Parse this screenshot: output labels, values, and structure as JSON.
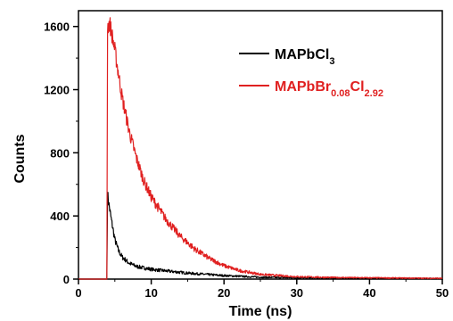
{
  "chart_data": {
    "type": "line",
    "xlabel": "Time (ns)",
    "ylabel": "Counts",
    "xlim": [
      0,
      50
    ],
    "ylim": [
      0,
      1700
    ],
    "x_ticks": [
      0,
      10,
      20,
      30,
      40,
      50
    ],
    "y_ticks": [
      0,
      400,
      800,
      1200,
      1600
    ],
    "grid": false,
    "legend_position": "top-right",
    "series": [
      {
        "name_main": "MAPbCl",
        "name_sub": "3",
        "color": "#000000",
        "x": [
          0,
          3.9,
          4.0,
          4.2,
          4.5,
          5.0,
          5.5,
          6.0,
          7.0,
          8.0,
          10.0,
          12.0,
          15.0,
          20.0,
          25.0,
          30.0,
          40.0,
          50.0
        ],
        "y": [
          0,
          0,
          540,
          470,
          380,
          250,
          180,
          140,
          100,
          80,
          62,
          52,
          38,
          22,
          12,
          8,
          5,
          4
        ]
      },
      {
        "name_main": "MAPbBr",
        "name_sub": "0.08",
        "name_main2": "Cl",
        "name_sub2": "2.92",
        "color": "#e02020",
        "x": [
          0,
          3.9,
          4.0,
          4.3,
          5.0,
          6.0,
          7.0,
          8.0,
          9.0,
          10.0,
          12.0,
          14.0,
          16.0,
          18.0,
          20.0,
          22.0,
          25.0,
          30.0,
          35.0,
          40.0,
          50.0
        ],
        "y": [
          0,
          0,
          1600,
          1620,
          1450,
          1150,
          930,
          760,
          620,
          520,
          380,
          270,
          190,
          130,
          85,
          55,
          30,
          15,
          10,
          8,
          5
        ]
      }
    ]
  }
}
